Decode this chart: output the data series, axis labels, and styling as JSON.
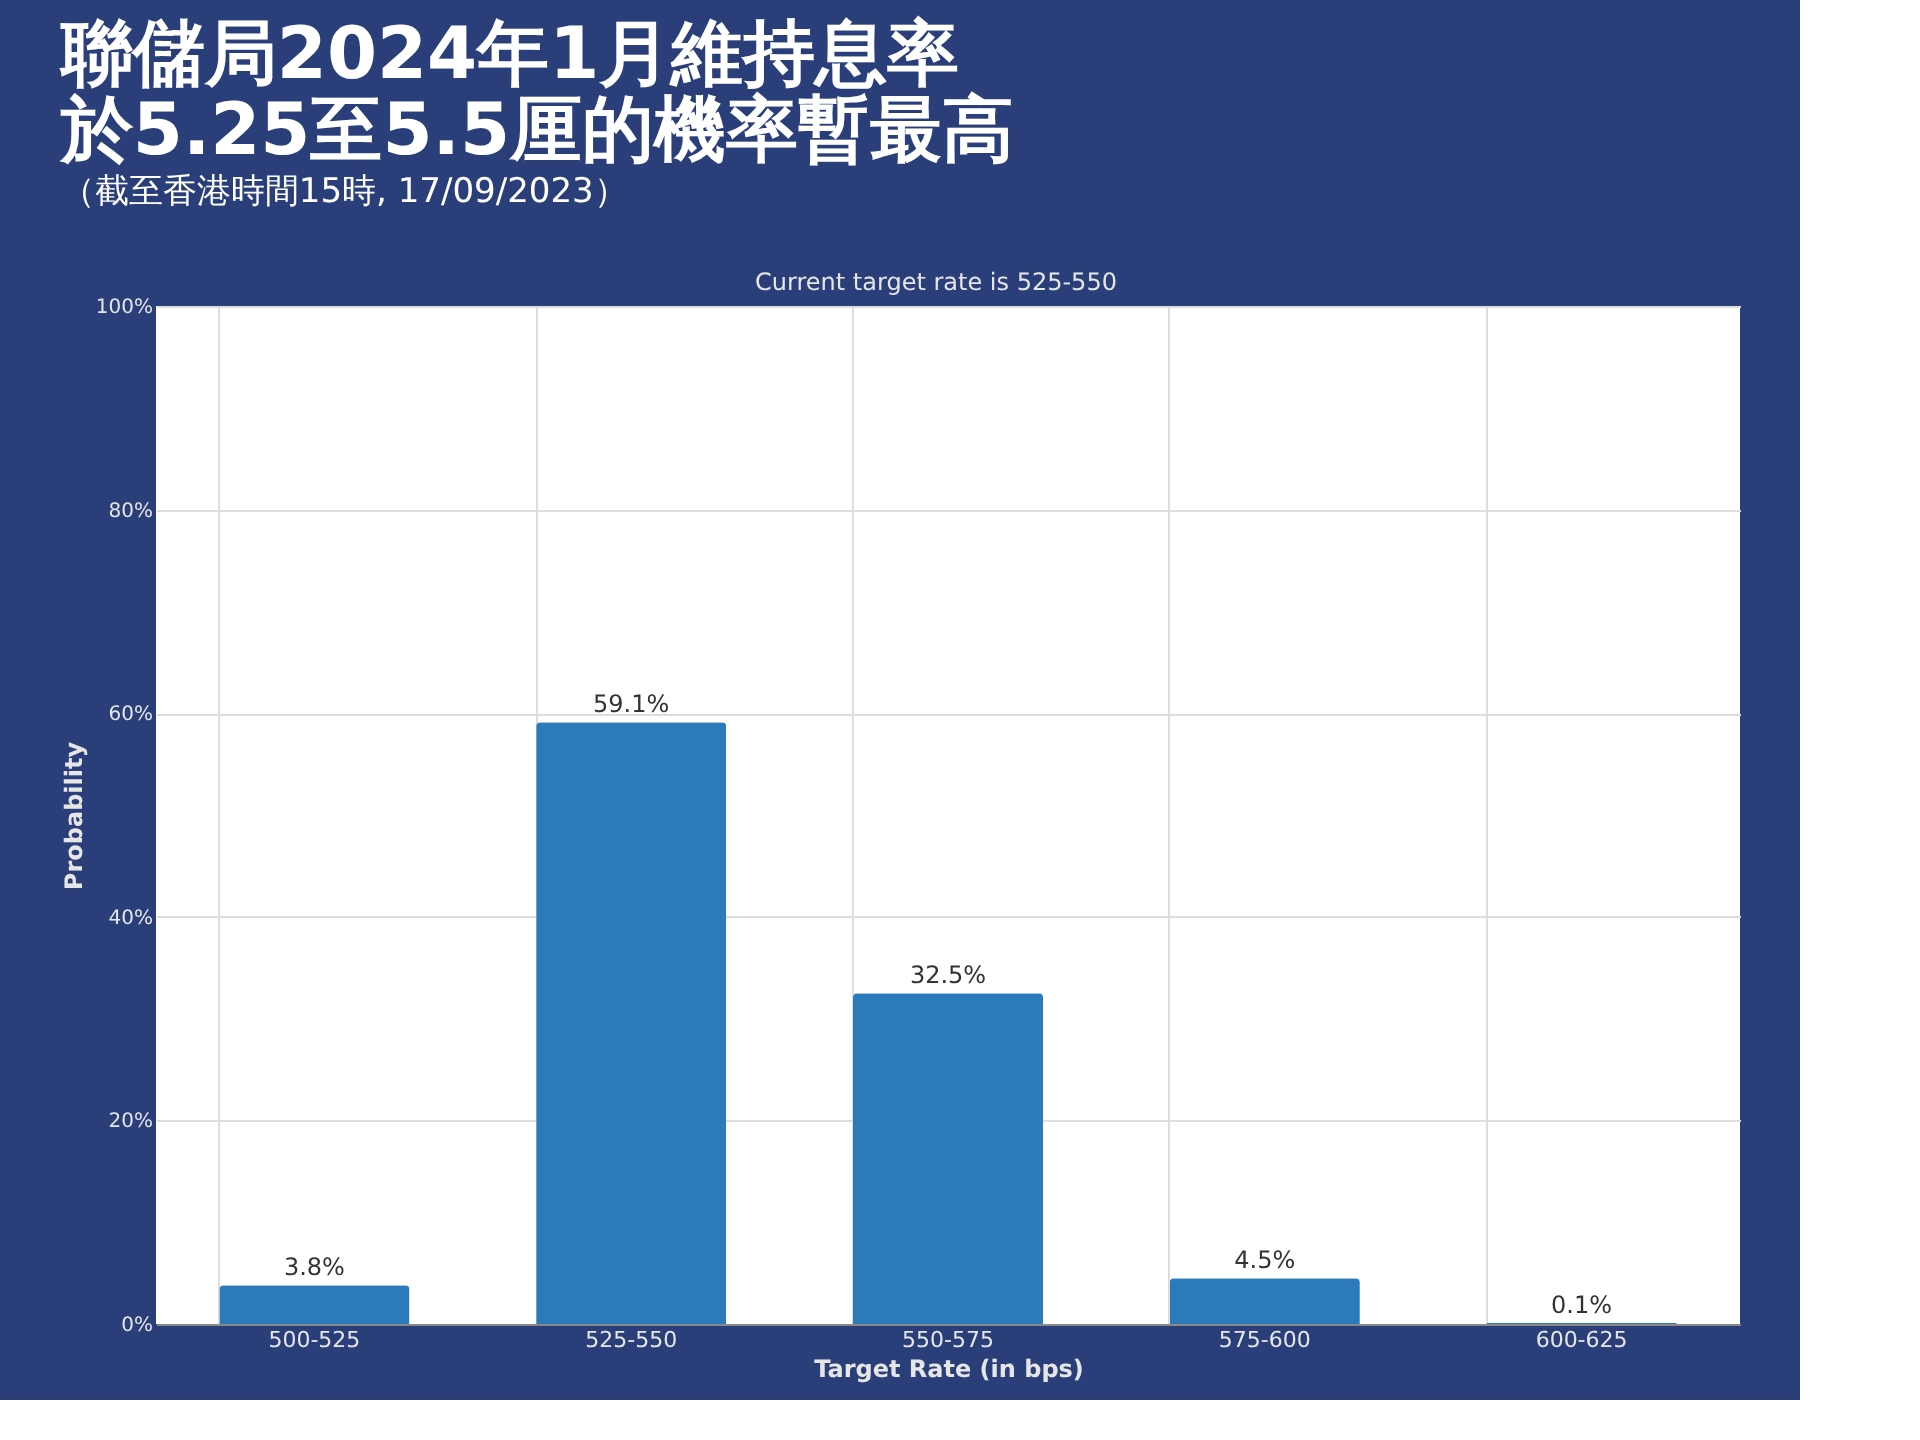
{
  "chart_data": {
    "type": "bar",
    "title": "聯儲局2024年1月維持息率於5.25至5.5厘的機率暫最高",
    "subtitle": "（截至香港時間15時, 17/09/2023）",
    "annotations": [
      "Current target rate is 525-550"
    ],
    "xlabel": "Target Rate (in bps)",
    "ylabel": "Probability",
    "categories": [
      "500-525",
      "525-550",
      "550-575",
      "575-600",
      "600-625"
    ],
    "values": [
      3.8,
      59.1,
      32.5,
      4.5,
      0.1
    ],
    "value_labels": [
      "3.8%",
      "59.1%",
      "32.5%",
      "4.5%",
      "0.1%"
    ],
    "color": "#2b7bba",
    "ylim": [
      0,
      100
    ],
    "yticks": [
      {
        "value": 0,
        "label": "0%"
      },
      {
        "value": 20,
        "label": "20%"
      },
      {
        "value": 40,
        "label": "40%"
      },
      {
        "value": 60,
        "label": "60%"
      },
      {
        "value": 80,
        "label": "80%"
      },
      {
        "value": 100,
        "label": "100%"
      }
    ],
    "grid": true
  }
}
